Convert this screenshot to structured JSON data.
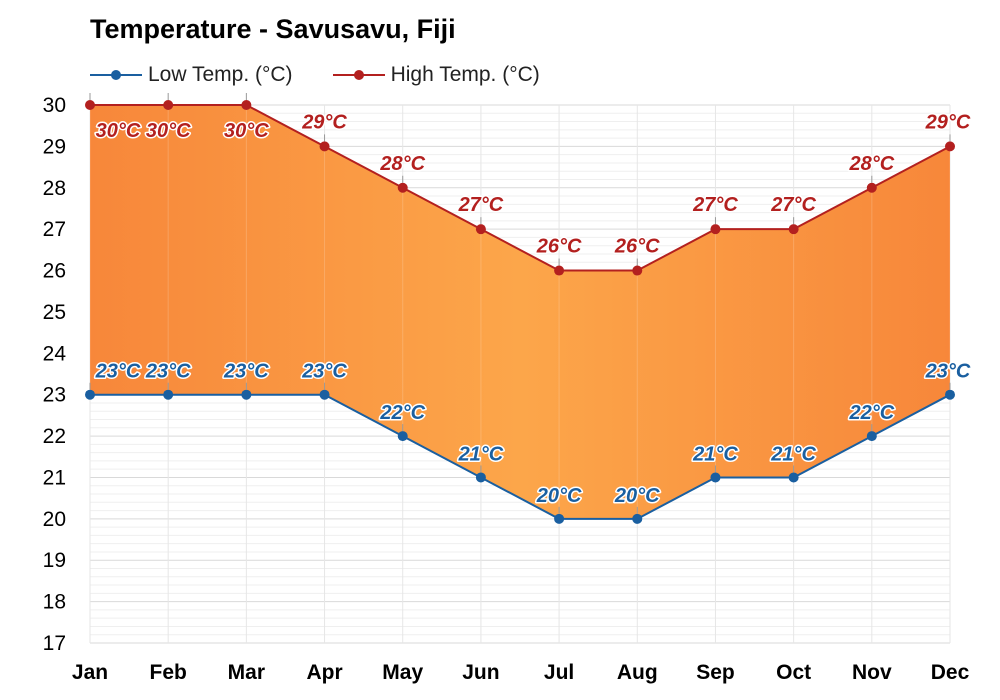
{
  "chart_data": {
    "type": "area",
    "title": "Temperature - Savusavu, Fiji",
    "categories": [
      "Jan",
      "Feb",
      "Mar",
      "Apr",
      "May",
      "Jun",
      "Jul",
      "Aug",
      "Sep",
      "Oct",
      "Nov",
      "Dec"
    ],
    "series": [
      {
        "name": "Low Temp. (°C)",
        "color": "#1a5fa0",
        "values": [
          23,
          23,
          23,
          23,
          22,
          21,
          20,
          20,
          21,
          21,
          22,
          23
        ],
        "labels": [
          "23°C",
          "23°C",
          "23°C",
          "23°C",
          "22°C",
          "21°C",
          "20°C",
          "20°C",
          "21°C",
          "21°C",
          "22°C",
          "23°C"
        ]
      },
      {
        "name": "High Temp. (°C)",
        "color": "#b3201f",
        "values": [
          30,
          30,
          30,
          29,
          28,
          27,
          26,
          26,
          27,
          27,
          28,
          29
        ],
        "labels": [
          "30°C",
          "30°C",
          "30°C",
          "29°C",
          "28°C",
          "27°C",
          "26°C",
          "26°C",
          "27°C",
          "27°C",
          "28°C",
          "29°C"
        ]
      }
    ],
    "fill_between_color": "#fb9a40",
    "ylim": [
      17,
      30
    ],
    "yticks": [
      17,
      18,
      19,
      20,
      21,
      22,
      23,
      24,
      25,
      26,
      27,
      28,
      29,
      30
    ],
    "xlabel": "",
    "ylabel": "",
    "grid": true,
    "legend_position": "top-left"
  }
}
